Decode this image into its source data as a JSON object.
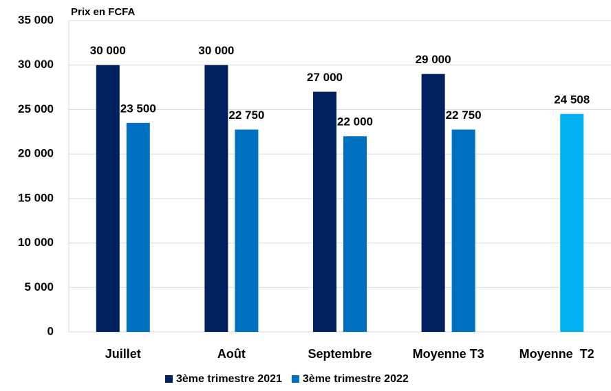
{
  "chart_data": {
    "type": "bar",
    "y_label": "Prix en FCFA",
    "categories": [
      "Juillet",
      "Août",
      "Septembre",
      "Moyenne T3",
      "Moyenne  T2"
    ],
    "series": [
      {
        "name": "3ème trimestre 2021",
        "color": "#002060",
        "values": [
          30000,
          30000,
          27000,
          29000,
          null
        ],
        "value_labels": [
          "30 000",
          "30 000",
          "27 000",
          "29 000",
          null
        ]
      },
      {
        "name": "3ème trimestre 2022",
        "color": "#0070c0",
        "colors": [
          "#0070c0",
          "#0070c0",
          "#0070c0",
          "#0070c0",
          "#00b0f0"
        ],
        "values": [
          23500,
          22750,
          22000,
          22750,
          24508
        ],
        "value_labels": [
          "23 500",
          "22 750",
          "22 000",
          "22 750",
          "24 508"
        ]
      }
    ],
    "ylim": [
      0,
      35000
    ],
    "yticks": [
      0,
      {
        "value": 5000,
        "label": "5 000"
      },
      {
        "value": 10000,
        "label": "10 000"
      },
      {
        "value": 15000,
        "label": "15 000"
      },
      {
        "value": 20000,
        "label": "20 000"
      },
      {
        "value": 25000,
        "label": "25 000"
      },
      {
        "value": 30000,
        "label": "30 000"
      },
      {
        "value": 35000,
        "label": "35 000"
      }
    ],
    "grid": true,
    "legend": "bottom"
  }
}
